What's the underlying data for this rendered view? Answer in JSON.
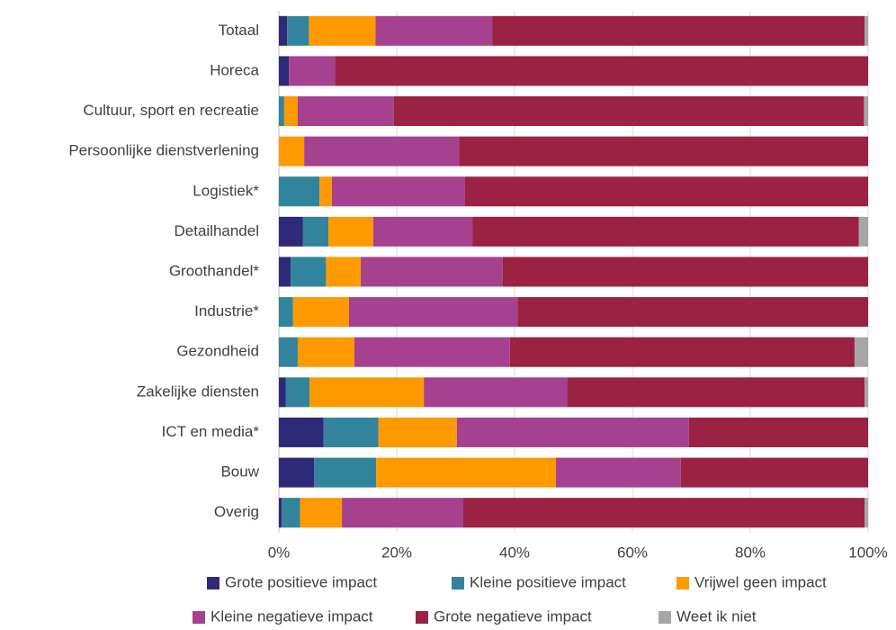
{
  "chart_data": {
    "type": "bar",
    "orientation": "horizontal",
    "stacked": true,
    "categories": [
      "Totaal",
      "Horeca",
      "Cultuur, sport en recreatie",
      "Persoonlijke dienstverlening",
      "Logistiek*",
      "Detailhandel",
      "Groothandel*",
      "Industrie*",
      "Gezondheid",
      "Zakelijke diensten",
      "ICT en media*",
      "Bouw",
      "Overig"
    ],
    "series": [
      {
        "name": "Grote positieve impact",
        "color": "#2e2a78",
        "values": [
          1.4,
          1.7,
          0,
          0,
          0,
          4.1,
          2.0,
          0,
          0,
          1.2,
          7.6,
          6.0,
          0.5
        ]
      },
      {
        "name": "Kleine positieve impact",
        "color": "#31849b",
        "values": [
          3.7,
          0,
          0.9,
          0,
          6.9,
          4.3,
          6.0,
          2.4,
          3.2,
          4.0,
          9.3,
          10.5,
          3.1
        ]
      },
      {
        "name": "Vrijwel geen impact",
        "color": "#ff9900",
        "values": [
          11.3,
          0,
          2.3,
          4.3,
          2.1,
          7.6,
          5.9,
          9.5,
          9.6,
          19.4,
          13.3,
          30.5,
          7.1
        ]
      },
      {
        "name": "Kleine negatieve impact",
        "color": "#a5418f",
        "values": [
          19.8,
          7.8,
          16.3,
          26.3,
          22.6,
          16.9,
          24.1,
          28.6,
          26.4,
          24.3,
          39.4,
          21.2,
          20.6
        ]
      },
      {
        "name": "Grote negatieve impact",
        "color": "#9b2242",
        "values": [
          63.2,
          90.5,
          79.8,
          69.4,
          68.4,
          65.5,
          62.0,
          59.5,
          58.5,
          50.5,
          30.4,
          31.8,
          68.1
        ]
      },
      {
        "name": "Weet ik niet",
        "color": "#a6a6a6",
        "values": [
          0.6,
          0,
          0.7,
          0,
          0,
          1.6,
          0,
          0,
          2.3,
          0.6,
          0,
          0,
          0.6
        ]
      }
    ],
    "xlim": [
      0,
      100
    ],
    "xticks": [
      {
        "value": 0,
        "label": "0%"
      },
      {
        "value": 20,
        "label": "20%"
      },
      {
        "value": 40,
        "label": "40%"
      },
      {
        "value": 60,
        "label": "60%"
      },
      {
        "value": 80,
        "label": "80%"
      },
      {
        "value": 100,
        "label": "100%"
      }
    ],
    "grid": true,
    "legend": "bottom"
  }
}
